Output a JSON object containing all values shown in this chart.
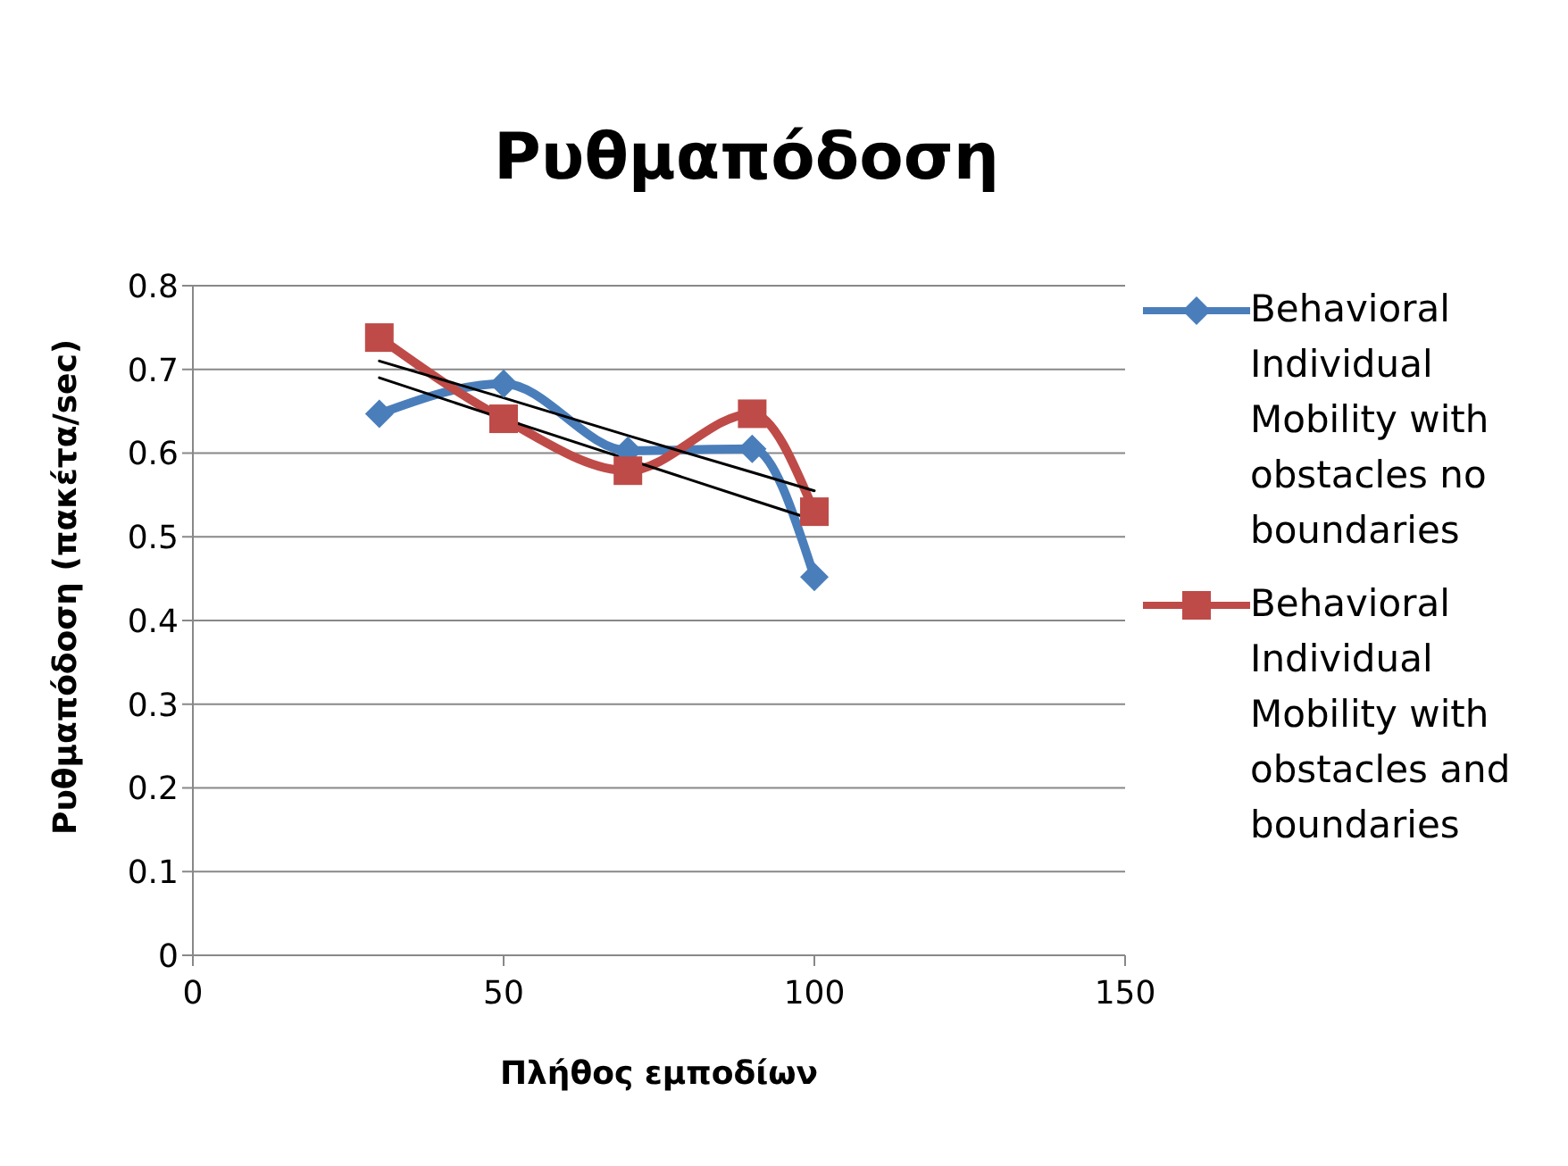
{
  "chart_data": {
    "type": "line",
    "title": "Ρυθμαπόδοση",
    "xlabel": "Πλήθος εμποδίων",
    "ylabel": "Ρυθμαπόδοση (πακέτα/sec)",
    "x": [
      30,
      50,
      70,
      90,
      100
    ],
    "series": [
      {
        "name": "Behavioral Individual Mobility with obstacles no boundaries",
        "color": "#4a7ebb",
        "marker": "diamond",
        "values": [
          0.647,
          0.683,
          0.603,
          0.605,
          0.452
        ]
      },
      {
        "name": "Behavioral Individual Mobility with obstacles and boundaries",
        "color": "#be4b48",
        "marker": "square",
        "values": [
          0.738,
          0.641,
          0.579,
          0.647,
          0.53
        ]
      },
      {
        "type": "line",
        "color": "#000000",
        "marker": "none",
        "values": [
          0.69,
          0.641,
          null,
          0.544,
          0.52
        ]
      },
      {
        "type": "line",
        "color": "#000000",
        "marker": "none",
        "values": [
          0.71,
          0.666,
          0.621,
          0.577,
          0.555
        ]
      }
    ],
    "xlim": [
      0,
      150
    ],
    "xticks": [
      0,
      50,
      100,
      150
    ],
    "ylim": [
      0,
      0.8
    ],
    "yticks": [
      0,
      0.1,
      0.2,
      0.3,
      0.4,
      0.5,
      0.6,
      0.7,
      0.8
    ],
    "grid": "y",
    "legend": "right"
  }
}
